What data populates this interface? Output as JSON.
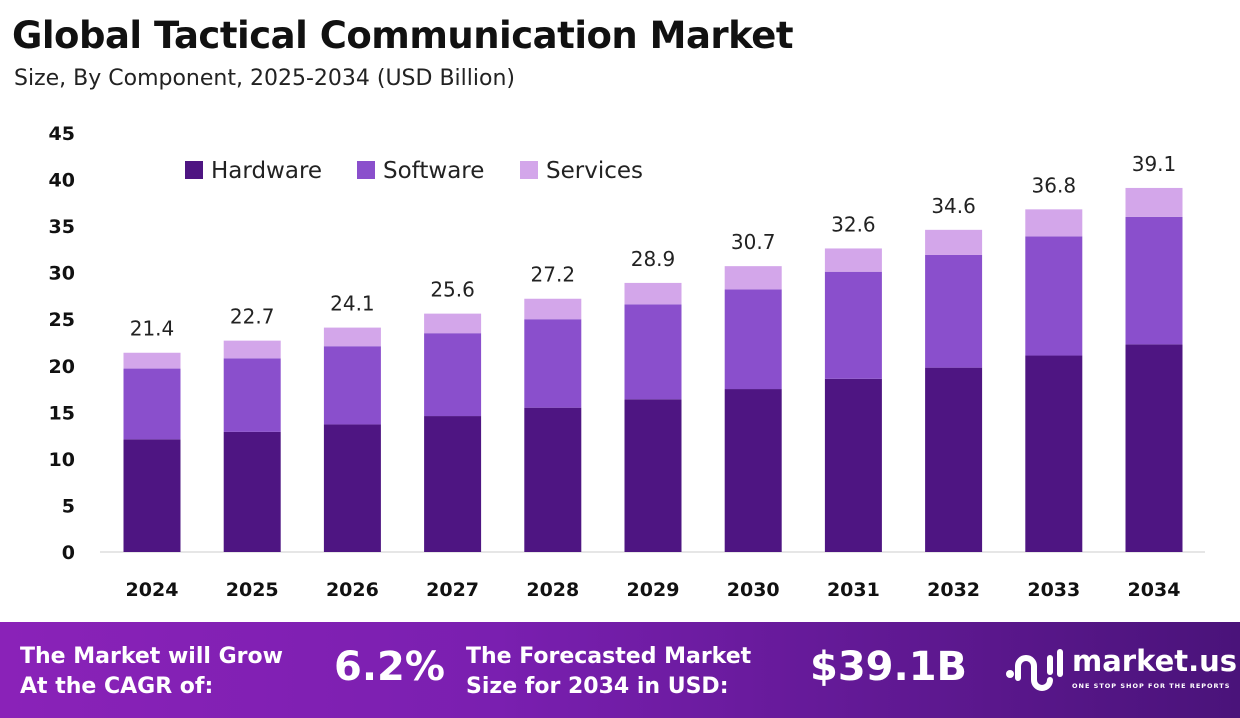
{
  "chart_data": {
    "type": "bar",
    "stacked": true,
    "title": "Global Tactical Communication Market",
    "subtitle": "Size, By Component, 2025-2034 (USD Billion)",
    "categories": [
      "2024",
      "2025",
      "2026",
      "2027",
      "2028",
      "2029",
      "2030",
      "2031",
      "2032",
      "2033",
      "2034"
    ],
    "series": [
      {
        "name": "Hardware",
        "color": "#4e1582",
        "values": [
          12.1,
          12.9,
          13.7,
          14.6,
          15.5,
          16.4,
          17.5,
          18.6,
          19.8,
          21.1,
          22.3
        ]
      },
      {
        "name": "Software",
        "color": "#8a4fcc",
        "values": [
          7.6,
          7.9,
          8.4,
          8.9,
          9.5,
          10.2,
          10.7,
          11.5,
          12.1,
          12.8,
          13.7
        ]
      },
      {
        "name": "Services",
        "color": "#d3a6ea",
        "values": [
          1.7,
          1.9,
          2.0,
          2.1,
          2.2,
          2.3,
          2.5,
          2.5,
          2.7,
          2.9,
          3.1
        ]
      }
    ],
    "totals": [
      "21.4",
      "22.7",
      "24.1",
      "25.6",
      "27.2",
      "28.9",
      "30.7",
      "32.6",
      "34.6",
      "36.8",
      "39.1"
    ],
    "yticks": [
      "0",
      "5",
      "10",
      "15",
      "20",
      "25",
      "30",
      "35",
      "40",
      "45"
    ],
    "ylim": [
      0,
      45
    ],
    "grid": false,
    "legend": "top-left"
  },
  "footer": {
    "cagr_label_1": "The Market will Grow",
    "cagr_label_2": "At the CAGR of:",
    "cagr_value": "6.2%",
    "forecast_label_1": "The Forecasted Market",
    "forecast_label_2": "Size for 2034 in USD:",
    "forecast_value": "$39.1B",
    "logo_name": "market.us",
    "logo_tagline": "ONE STOP SHOP FOR THE REPORTS"
  }
}
